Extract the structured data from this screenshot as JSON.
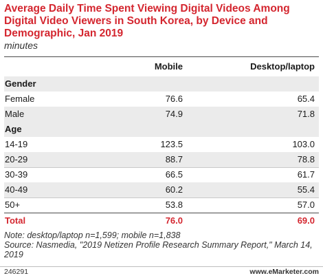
{
  "title": "Average Daily Time Spent Viewing Digital Videos Among Digital Video Viewers in South Korea, by Device and Demographic, Jan 2019",
  "subtitle": "minutes",
  "columns": [
    "",
    "Mobile",
    "Desktop/laptop"
  ],
  "rows": [
    {
      "kind": "section",
      "label": "Gender"
    },
    {
      "kind": "data",
      "label": "Female",
      "mobile": "76.6",
      "desktop": "65.4"
    },
    {
      "kind": "data",
      "label": "Male",
      "mobile": "74.9",
      "desktop": "71.8"
    },
    {
      "kind": "section",
      "label": "Age"
    },
    {
      "kind": "data",
      "label": "14-19",
      "mobile": "123.5",
      "desktop": "103.0"
    },
    {
      "kind": "data",
      "label": "20-29",
      "mobile": "88.7",
      "desktop": "78.8"
    },
    {
      "kind": "data",
      "label": "30-39",
      "mobile": "66.5",
      "desktop": "61.7"
    },
    {
      "kind": "data",
      "label": "40-49",
      "mobile": "60.2",
      "desktop": "55.4"
    },
    {
      "kind": "data",
      "label": "50+",
      "mobile": "53.8",
      "desktop": "57.0"
    },
    {
      "kind": "total",
      "label": "Total",
      "mobile": "76.0",
      "desktop": "69.0"
    }
  ],
  "notes": {
    "note": "Note: desktop/laptop n=1,599; mobile n=1,838",
    "source": "Source: Nasmedia, \"2019 Netizen Profile Research Summary Report,\" March 14, 2019"
  },
  "footer": {
    "code": "246291",
    "brand": "www.eMarketer.com"
  },
  "colors": {
    "accent": "#d4262f",
    "shade": "#ebebeb"
  },
  "chart_data": {
    "type": "table",
    "title": "Average Daily Time Spent Viewing Digital Videos Among Digital Video Viewers in South Korea, by Device and Demographic, Jan 2019",
    "unit": "minutes",
    "columns": [
      "Mobile",
      "Desktop/laptop"
    ],
    "groups": [
      {
        "name": "Gender",
        "rows": [
          {
            "label": "Female",
            "values": [
              76.6,
              65.4
            ]
          },
          {
            "label": "Male",
            "values": [
              74.9,
              71.8
            ]
          }
        ]
      },
      {
        "name": "Age",
        "rows": [
          {
            "label": "14-19",
            "values": [
              123.5,
              103.0
            ]
          },
          {
            "label": "20-29",
            "values": [
              88.7,
              78.8
            ]
          },
          {
            "label": "30-39",
            "values": [
              66.5,
              61.7
            ]
          },
          {
            "label": "40-49",
            "values": [
              60.2,
              55.4
            ]
          },
          {
            "label": "50+",
            "values": [
              53.8,
              57.0
            ]
          }
        ]
      }
    ],
    "total": {
      "label": "Total",
      "values": [
        76.0,
        69.0
      ]
    }
  }
}
